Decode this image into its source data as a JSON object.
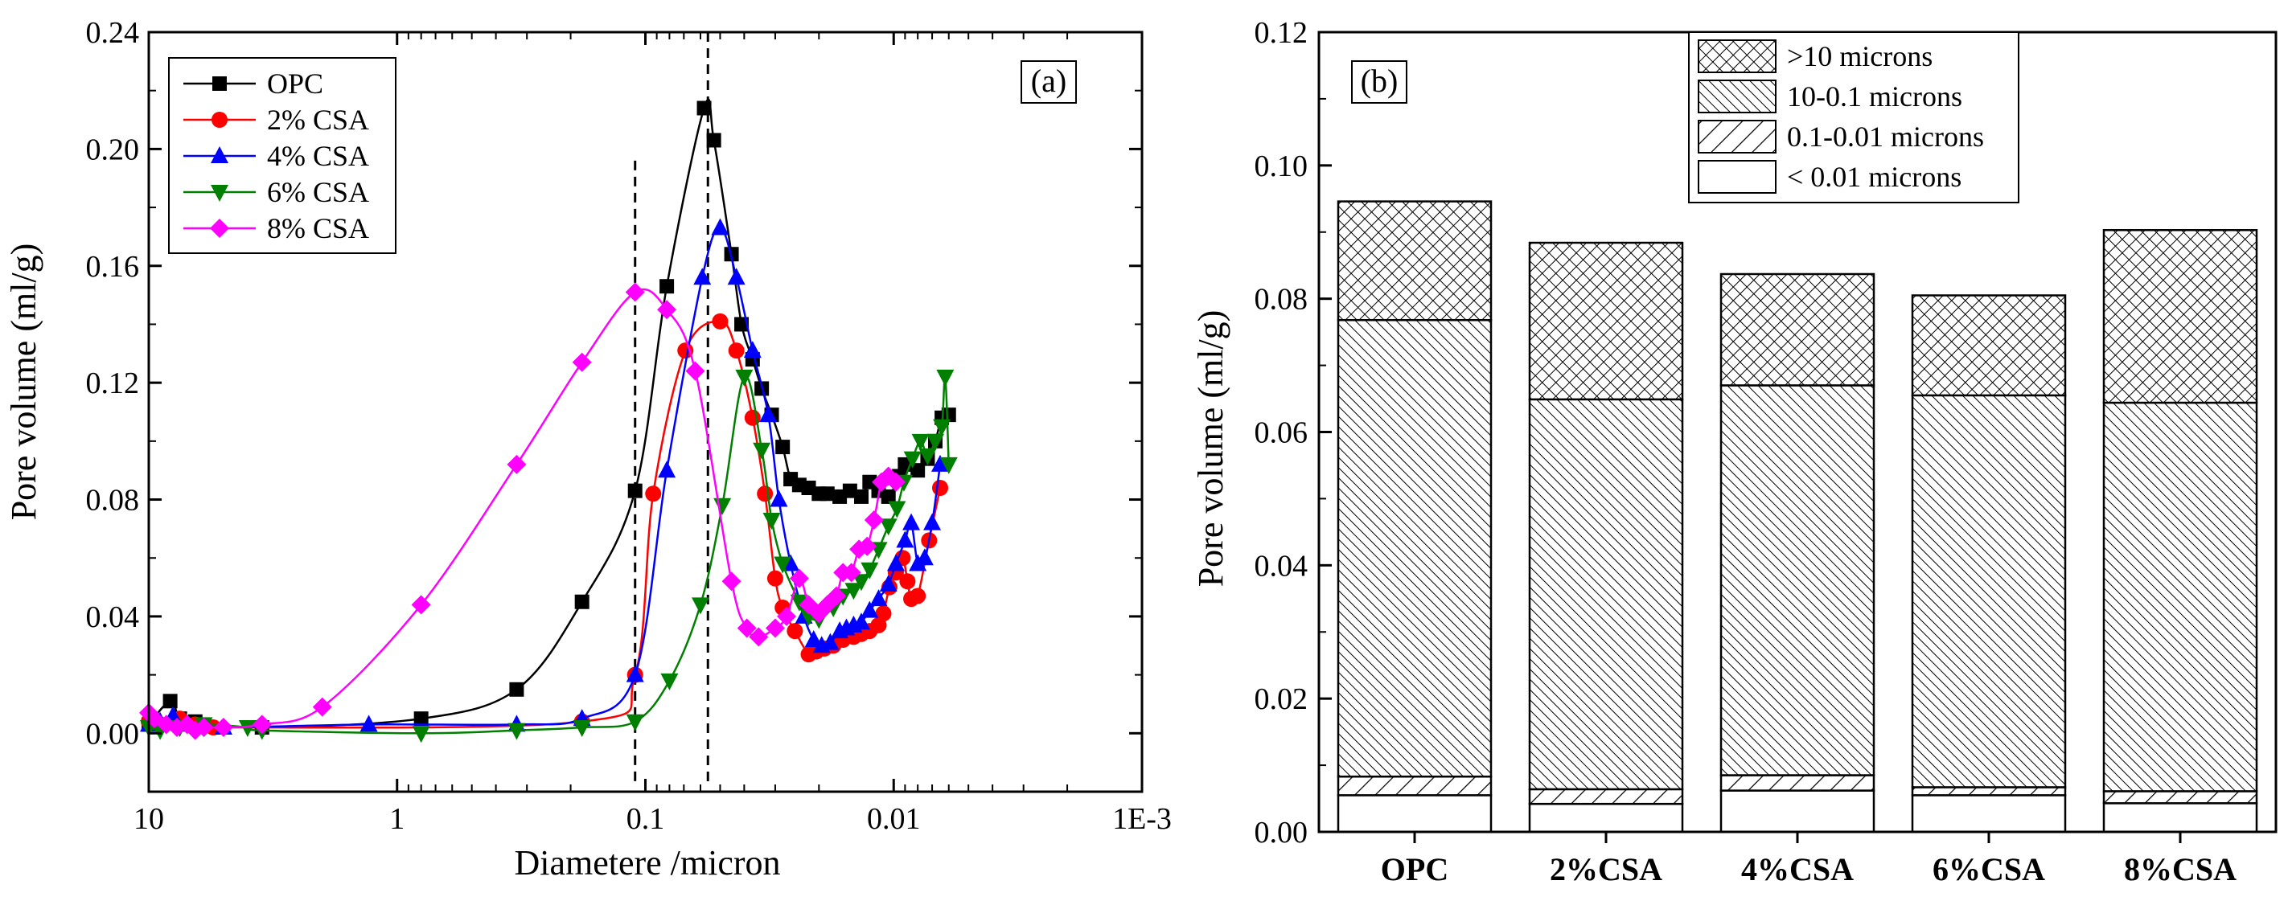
{
  "chart_data": [
    {
      "type": "line",
      "panel_label": "(a)",
      "xlabel": "Diametere /micron",
      "ylabel": "Pore volume (ml/g)",
      "x_scale": "log",
      "x_reversed": true,
      "xlim": [
        10,
        0.001
      ],
      "ylim": [
        -0.02,
        0.24
      ],
      "xticks": [
        10,
        1,
        0.1,
        0.01,
        0.001
      ],
      "xtick_labels": [
        "10",
        "1",
        "0.1",
        "0.01",
        "1E-3"
      ],
      "yticks": [
        0,
        0.04,
        0.08,
        0.12,
        0.16,
        0.2,
        0.24
      ],
      "ytick_labels": [
        "0.00",
        "0.04",
        "0.08",
        "0.12",
        "0.16",
        "0.20",
        "0.24"
      ],
      "legend_position": "top-left",
      "reference_lines_x": [
        0.11,
        0.056
      ],
      "series": [
        {
          "name": "OPC",
          "color": "#000000",
          "marker": "square",
          "x": [
            10,
            8.2,
            7.5,
            6.5,
            3.5,
            0.8,
            0.33,
            0.18,
            0.11,
            0.082,
            0.058,
            0.053,
            0.045,
            0.041,
            0.037,
            0.034,
            0.031,
            0.028,
            0.026,
            0.024,
            0.022,
            0.02,
            0.0185,
            0.0165,
            0.015,
            0.0135,
            0.0125,
            0.0115,
            0.0105,
            0.0095,
            0.009,
            0.008,
            0.0073,
            0.0068,
            0.0064,
            0.006
          ],
          "y": [
            0.003,
            0.011,
            0.005,
            0.004,
            0.002,
            0.005,
            0.015,
            0.045,
            0.083,
            0.153,
            0.214,
            0.203,
            0.164,
            0.14,
            0.128,
            0.118,
            0.109,
            0.098,
            0.087,
            0.085,
            0.084,
            0.082,
            0.082,
            0.081,
            0.083,
            0.081,
            0.086,
            0.083,
            0.081,
            0.088,
            0.092,
            0.09,
            0.094,
            0.1,
            0.108,
            0.109
          ]
        },
        {
          "name": "2% CSA",
          "color": "#ff0000",
          "marker": "circle",
          "x": [
            10,
            9,
            7.5,
            6.5,
            5.5,
            0.18,
            0.11,
            0.093,
            0.069,
            0.05,
            0.043,
            0.037,
            0.033,
            0.03,
            0.028,
            0.025,
            0.022,
            0.0205,
            0.019,
            0.0175,
            0.016,
            0.0145,
            0.0135,
            0.0125,
            0.0115,
            0.011,
            0.0104,
            0.0098,
            0.0092,
            0.0088,
            0.0085,
            0.008,
            0.0072,
            0.0065
          ],
          "y": [
            0.004,
            0.003,
            0.005,
            0.003,
            0.002,
            0.004,
            0.02,
            0.082,
            0.131,
            0.141,
            0.131,
            0.108,
            0.082,
            0.053,
            0.043,
            0.035,
            0.027,
            0.028,
            0.029,
            0.03,
            0.032,
            0.033,
            0.034,
            0.035,
            0.037,
            0.041,
            0.05,
            0.055,
            0.06,
            0.052,
            0.046,
            0.047,
            0.066,
            0.084
          ]
        },
        {
          "name": "4% CSA",
          "color": "#0000ff",
          "marker": "triangle-up",
          "x": [
            10,
            9,
            8,
            7,
            5,
            1.3,
            0.33,
            0.18,
            0.11,
            0.082,
            0.059,
            0.05,
            0.043,
            0.037,
            0.032,
            0.029,
            0.026,
            0.023,
            0.021,
            0.0195,
            0.018,
            0.0165,
            0.0155,
            0.0145,
            0.0135,
            0.0125,
            0.0115,
            0.0105,
            0.0098,
            0.009,
            0.0085,
            0.008,
            0.0075,
            0.007,
            0.0065
          ],
          "y": [
            0.003,
            0.004,
            0.006,
            0.003,
            0.002,
            0.003,
            0.003,
            0.005,
            0.02,
            0.09,
            0.156,
            0.173,
            0.156,
            0.131,
            0.109,
            0.08,
            0.058,
            0.04,
            0.032,
            0.03,
            0.031,
            0.035,
            0.036,
            0.037,
            0.038,
            0.042,
            0.046,
            0.051,
            0.058,
            0.066,
            0.072,
            0.058,
            0.06,
            0.072,
            0.092
          ]
        },
        {
          "name": "6% CSA",
          "color": "#007f00",
          "marker": "triangle-down",
          "x": [
            10,
            9,
            7.5,
            6,
            4,
            3.5,
            0.8,
            0.33,
            0.18,
            0.11,
            0.08,
            0.06,
            0.049,
            0.04,
            0.034,
            0.031,
            0.028,
            0.024,
            0.022,
            0.02,
            0.0175,
            0.016,
            0.0145,
            0.0135,
            0.0125,
            0.0115,
            0.0105,
            0.0097,
            0.0091,
            0.0084,
            0.0078,
            0.0073,
            0.0068,
            0.0064,
            0.0062,
            0.006
          ],
          "y": [
            0.002,
            0.001,
            0.002,
            0.003,
            0.002,
            0.001,
            0.0,
            0.001,
            0.002,
            0.004,
            0.018,
            0.044,
            0.078,
            0.122,
            0.097,
            0.073,
            0.058,
            0.045,
            0.04,
            0.039,
            0.043,
            0.047,
            0.049,
            0.052,
            0.056,
            0.063,
            0.071,
            0.077,
            0.086,
            0.094,
            0.1,
            0.095,
            0.1,
            0.105,
            0.122,
            0.092
          ]
        },
        {
          "name": "8% CSA",
          "color": "#ff00ff",
          "marker": "diamond",
          "x": [
            10,
            9.5,
            8.5,
            7.7,
            7,
            6.5,
            6,
            5,
            3.5,
            2,
            0.8,
            0.33,
            0.18,
            0.11,
            0.082,
            0.063,
            0.045,
            0.039,
            0.035,
            0.03,
            0.027,
            0.024,
            0.022,
            0.02,
            0.0185,
            0.017,
            0.016,
            0.0148,
            0.0138,
            0.0128,
            0.012,
            0.0112,
            0.0105,
            0.0098
          ],
          "y": [
            0.007,
            0.005,
            0.003,
            0.002,
            0.003,
            0.001,
            0.002,
            0.002,
            0.003,
            0.009,
            0.044,
            0.092,
            0.127,
            0.151,
            0.145,
            0.124,
            0.052,
            0.036,
            0.033,
            0.036,
            0.04,
            0.053,
            0.044,
            0.041,
            0.044,
            0.047,
            0.055,
            0.055,
            0.063,
            0.064,
            0.073,
            0.086,
            0.088,
            0.086
          ]
        }
      ]
    },
    {
      "type": "bar",
      "stacked": true,
      "panel_label": "(b)",
      "xlabel": "",
      "ylabel": "Pore volume (ml/g)",
      "ylim": [
        0,
        0.12
      ],
      "yticks": [
        0,
        0.02,
        0.04,
        0.06,
        0.08,
        0.1,
        0.12
      ],
      "ytick_labels": [
        "0.00",
        "0.02",
        "0.04",
        "0.06",
        "0.08",
        "0.10",
        "0.12"
      ],
      "legend_position": "top-center",
      "categories": [
        "OPC",
        "2%CSA",
        "4%CSA",
        "6%CSA",
        "8%CSA"
      ],
      "series": [
        {
          "name": "< 0.01 microns",
          "pattern": "blank",
          "values": [
            0.0055,
            0.0042,
            0.0062,
            0.0055,
            0.0043
          ]
        },
        {
          "name": "0.1-0.01 microns",
          "pattern": "sparse-hatch",
          "values": [
            0.0028,
            0.0022,
            0.0023,
            0.0012,
            0.0018
          ]
        },
        {
          "name": "10-0.1 microns",
          "pattern": "dense-hatch",
          "values": [
            0.0685,
            0.0585,
            0.0585,
            0.0588,
            0.0583
          ]
        },
        {
          "name": ">10 microns",
          "pattern": "crosshatch",
          "values": [
            0.0178,
            0.0235,
            0.0167,
            0.015,
            0.0259
          ]
        }
      ]
    }
  ]
}
